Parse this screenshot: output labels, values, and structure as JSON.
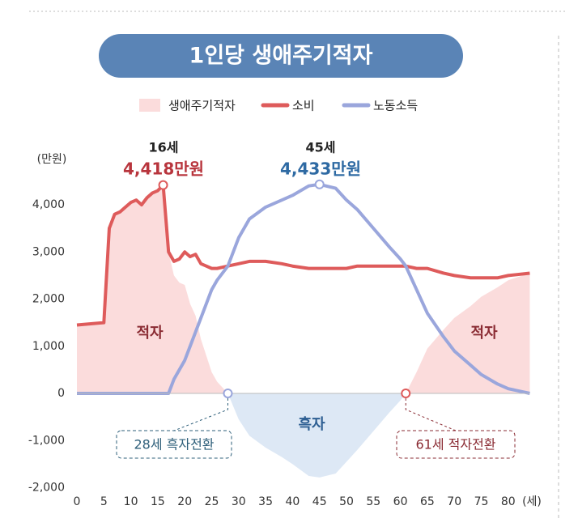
{
  "chart_data": {
    "type": "area-line",
    "title": "1인당 생애주기적자",
    "y_unit": "(만원)",
    "x_unit": "(세)",
    "x": [
      0,
      5,
      6,
      7,
      8,
      9,
      10,
      11,
      12,
      13,
      14,
      15,
      16,
      17,
      18,
      19,
      20,
      21,
      22,
      23,
      24,
      25,
      26,
      28,
      30,
      32,
      35,
      38,
      40,
      43,
      45,
      48,
      50,
      52,
      55,
      58,
      60,
      61,
      63,
      65,
      68,
      70,
      73,
      75,
      78,
      80,
      84
    ],
    "series": [
      {
        "name": "생애주기적자",
        "kind": "area",
        "color": "#fbdcdc",
        "negative_color": "#dde8f5",
        "values": [
          1450,
          1500,
          3500,
          3800,
          3850,
          3950,
          4050,
          4100,
          4000,
          4150,
          4250,
          4300,
          4418,
          3000,
          2500,
          2350,
          2300,
          1900,
          1650,
          1150,
          800,
          450,
          250,
          0,
          -550,
          -900,
          -1150,
          -1350,
          -1500,
          -1750,
          -1783,
          -1700,
          -1450,
          -1200,
          -800,
          -400,
          -150,
          0,
          450,
          950,
          1350,
          1600,
          1850,
          2050,
          2250,
          2400,
          2550
        ]
      },
      {
        "name": "소비",
        "kind": "line",
        "color": "#de5b5b",
        "values": [
          1450,
          1500,
          3500,
          3800,
          3850,
          3950,
          4050,
          4100,
          4000,
          4150,
          4250,
          4300,
          4418,
          3000,
          2800,
          2850,
          3000,
          2900,
          2950,
          2750,
          2700,
          2650,
          2650,
          2700,
          2750,
          2800,
          2800,
          2750,
          2700,
          2650,
          2650,
          2650,
          2650,
          2700,
          2700,
          2700,
          2700,
          2700,
          2650,
          2650,
          2550,
          2500,
          2450,
          2450,
          2450,
          2500,
          2550
        ]
      },
      {
        "name": "노동소득",
        "kind": "line",
        "color": "#9aa6dc",
        "values": [
          0,
          0,
          0,
          0,
          0,
          0,
          0,
          0,
          0,
          0,
          0,
          0,
          0,
          0,
          300,
          500,
          700,
          1000,
          1300,
          1600,
          1900,
          2200,
          2400,
          2700,
          3300,
          3700,
          3950,
          4100,
          4200,
          4400,
          4433,
          4350,
          4100,
          3900,
          3500,
          3100,
          2850,
          2700,
          2200,
          1700,
          1200,
          900,
          600,
          400,
          200,
          100,
          0
        ]
      }
    ],
    "xlim": [
      0,
      84
    ],
    "ylim": [
      -2000,
      4418
    ],
    "xticks": [
      0,
      5,
      10,
      15,
      20,
      25,
      30,
      35,
      40,
      45,
      50,
      55,
      60,
      65,
      70,
      75,
      80
    ],
    "yticks": [
      {
        "value": -2000,
        "label": "-2,000"
      },
      {
        "value": -1000,
        "label": "-1,000"
      },
      0,
      {
        "value": 1000,
        "label": "1,000"
      },
      {
        "value": 2000,
        "label": "2,000"
      },
      {
        "value": 3000,
        "label": "3,000"
      },
      {
        "value": 4000,
        "label": "4,000"
      }
    ],
    "annotations": [
      "16세",
      "4,418만원",
      "45세",
      "4,433만원",
      "적자",
      "흑자",
      "적자",
      "28세 흑자전환",
      "61세 적자전환"
    ]
  }
}
